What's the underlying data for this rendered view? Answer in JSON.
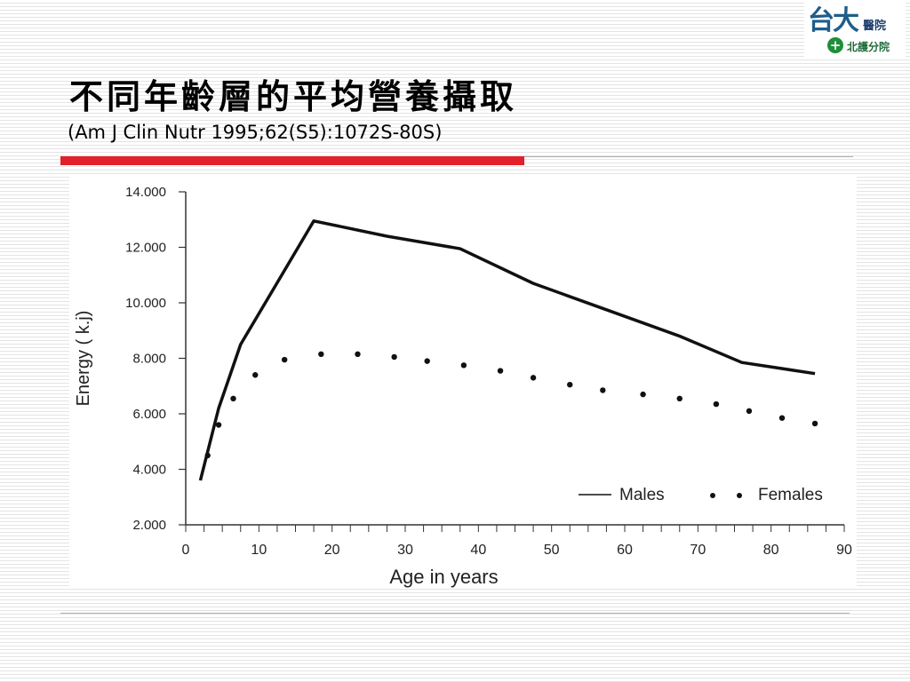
{
  "logo": {
    "main_text": "台大",
    "top_text": "醫院",
    "cross_symbol": "+",
    "bottom_text": "北護分院",
    "color_primary": "#1d5e8c",
    "color_green": "#1f8f3a"
  },
  "slide": {
    "title": "不同年齡層的平均營養攝取",
    "citation": "(Am J Clin Nutr 1995;62(S5):1072S-80S)",
    "accent_color": "#e2202c"
  },
  "chart_data": {
    "type": "line",
    "xlabel": "Age in years",
    "ylabel": "Energy ( k.j)",
    "xlim": [
      0,
      90
    ],
    "ylim": [
      2000,
      14000
    ],
    "x_ticks": [
      0,
      10,
      20,
      30,
      40,
      50,
      60,
      70,
      80,
      90
    ],
    "x_minor_step": 2.5,
    "y_ticks": [
      2000,
      4000,
      6000,
      8000,
      10000,
      12000,
      14000
    ],
    "y_tick_labels": [
      "2.000",
      "4.000",
      "6.000",
      "8.000",
      "10.000",
      "12.000",
      "14.000"
    ],
    "legend_position": "bottom-right",
    "series": [
      {
        "name": "Males",
        "style": "solid",
        "x": [
          2,
          4.5,
          7.5,
          12,
          17.5,
          27.5,
          37.5,
          47.5,
          57.5,
          67.5,
          76,
          86
        ],
        "y": [
          3600,
          6200,
          8500,
          10500,
          12950,
          12400,
          11950,
          10700,
          9750,
          8800,
          7850,
          7450
        ]
      },
      {
        "name": "Females",
        "style": "dotted",
        "x": [
          3,
          4.5,
          6.5,
          9.5,
          13.5,
          18.5,
          23.5,
          28.5,
          33,
          38,
          43,
          47.5,
          52.5,
          57,
          62.5,
          67.5,
          72.5,
          77,
          81.5,
          86
        ],
        "y": [
          4500,
          5600,
          6550,
          7400,
          7950,
          8150,
          8150,
          8050,
          7900,
          7750,
          7550,
          7300,
          7050,
          6850,
          6700,
          6550,
          6350,
          6100,
          5850,
          5650
        ]
      }
    ]
  }
}
